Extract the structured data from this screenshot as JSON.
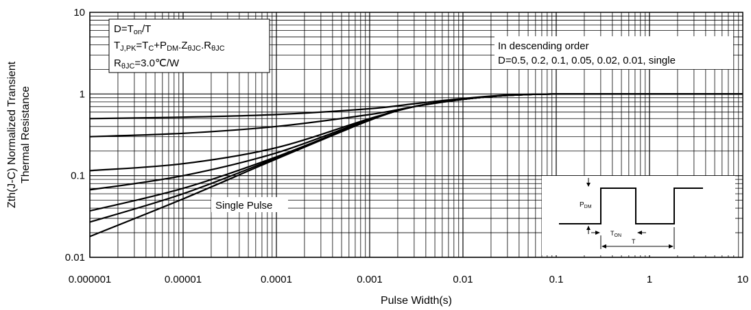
{
  "chart_data": {
    "type": "line",
    "xscale": "log",
    "yscale": "log",
    "xlim": [
      1e-06,
      10
    ],
    "ylim": [
      0.01,
      10
    ],
    "grid": true,
    "xlabel": "Pulse Width(s)",
    "ylabel_line1": "Zth(J-C) Normalized Transient",
    "ylabel_line2": "Thermal Resistance",
    "x_ticks": [
      "0.000001",
      "0.00001",
      "0.0001",
      "0.001",
      "0.01",
      "0.1",
      "1",
      "10"
    ],
    "y_ticks": [
      "0.01",
      "0.1",
      "1",
      "10"
    ],
    "series": [
      {
        "x": [
          1e-06,
          1e-05,
          0.0001,
          0.001,
          0.003,
          0.01,
          0.03,
          0.1,
          1,
          10
        ],
        "y": [
          0.5,
          0.52,
          0.56,
          0.66,
          0.76,
          0.88,
          0.97,
          1,
          1,
          1
        ]
      },
      {
        "x": [
          1e-06,
          1e-05,
          0.0001,
          0.001,
          0.003,
          0.01,
          0.03,
          0.1,
          1,
          10
        ],
        "y": [
          0.3,
          0.33,
          0.4,
          0.56,
          0.7,
          0.86,
          0.96,
          1,
          1,
          1
        ]
      },
      {
        "x": [
          1e-06,
          1e-05,
          0.0001,
          0.001,
          0.003,
          0.01,
          0.03,
          0.1,
          1,
          10
        ],
        "y": [
          0.115,
          0.14,
          0.22,
          0.5,
          0.7,
          0.86,
          0.96,
          1,
          1,
          1
        ]
      },
      {
        "x": [
          1e-06,
          1e-05,
          0.0001,
          0.001,
          0.003,
          0.01,
          0.03,
          0.1,
          1,
          10
        ],
        "y": [
          0.067,
          0.1,
          0.19,
          0.49,
          0.7,
          0.86,
          0.96,
          1,
          1,
          1
        ]
      },
      {
        "x": [
          1e-06,
          1e-05,
          0.0001,
          0.001,
          0.003,
          0.01,
          0.03,
          0.1,
          1,
          10
        ],
        "y": [
          0.037,
          0.07,
          0.17,
          0.48,
          0.7,
          0.86,
          0.96,
          1,
          1,
          1
        ]
      },
      {
        "x": [
          1e-06,
          1e-05,
          0.0001,
          0.001,
          0.003,
          0.01,
          0.03,
          0.1,
          1,
          10
        ],
        "y": [
          0.027,
          0.06,
          0.165,
          0.48,
          0.7,
          0.86,
          0.96,
          1,
          1,
          1
        ]
      },
      {
        "x": [
          1e-06,
          1e-05,
          0.0001,
          0.001,
          0.003,
          0.01,
          0.03,
          0.1,
          1,
          10
        ],
        "y": [
          0.018,
          0.052,
          0.16,
          0.475,
          0.7,
          0.86,
          0.96,
          1,
          1,
          1
        ]
      }
    ],
    "annotations": {
      "formula_d": "D=T",
      "formula_d_sub": "on",
      "formula_d_end": "/T",
      "formula_tj": "T",
      "formula_tj_sub": "J,PK",
      "formula_tj_mid1": "=T",
      "formula_tj_sub2": "C",
      "formula_tj_mid2": "+P",
      "formula_tj_sub3": "DM",
      "formula_tj_mid3": ".Z",
      "formula_tj_sub4": "θJC",
      "formula_tj_mid4": ".R",
      "formula_tj_sub5": "θJC",
      "formula_r": "R",
      "formula_r_sub": "θJC",
      "formula_r_end": "=3.0℃/W",
      "order_line1": "In descending order",
      "order_line2": "D=0.5, 0.2, 0.1, 0.05, 0.02, 0.01, single",
      "single_pulse": "Single Pulse",
      "inset_pdm": "P",
      "inset_pdm_sub": "DM",
      "inset_ton": "T",
      "inset_ton_sub": "ON",
      "inset_t": "T"
    }
  }
}
